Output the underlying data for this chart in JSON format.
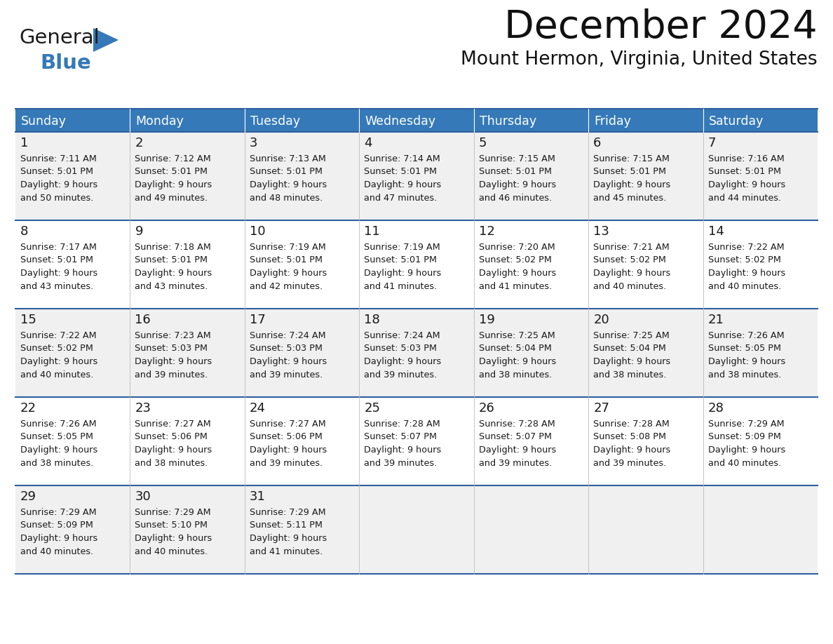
{
  "title": "December 2024",
  "subtitle": "Mount Hermon, Virginia, United States",
  "header_color": "#3579b8",
  "header_text_color": "#ffffff",
  "row_bg_odd": "#f0f0f0",
  "row_bg_even": "#ffffff",
  "border_color": "#2f5f9e",
  "text_color": "#1a1a1a",
  "days_of_week": [
    "Sunday",
    "Monday",
    "Tuesday",
    "Wednesday",
    "Thursday",
    "Friday",
    "Saturday"
  ],
  "calendar_data": [
    [
      {
        "day": "1",
        "sunrise": "7:11 AM",
        "sunset": "5:01 PM",
        "daylight_hours": "9",
        "daylight_minutes": "50"
      },
      {
        "day": "2",
        "sunrise": "7:12 AM",
        "sunset": "5:01 PM",
        "daylight_hours": "9",
        "daylight_minutes": "49"
      },
      {
        "day": "3",
        "sunrise": "7:13 AM",
        "sunset": "5:01 PM",
        "daylight_hours": "9",
        "daylight_minutes": "48"
      },
      {
        "day": "4",
        "sunrise": "7:14 AM",
        "sunset": "5:01 PM",
        "daylight_hours": "9",
        "daylight_minutes": "47"
      },
      {
        "day": "5",
        "sunrise": "7:15 AM",
        "sunset": "5:01 PM",
        "daylight_hours": "9",
        "daylight_minutes": "46"
      },
      {
        "day": "6",
        "sunrise": "7:15 AM",
        "sunset": "5:01 PM",
        "daylight_hours": "9",
        "daylight_minutes": "45"
      },
      {
        "day": "7",
        "sunrise": "7:16 AM",
        "sunset": "5:01 PM",
        "daylight_hours": "9",
        "daylight_minutes": "44"
      }
    ],
    [
      {
        "day": "8",
        "sunrise": "7:17 AM",
        "sunset": "5:01 PM",
        "daylight_hours": "9",
        "daylight_minutes": "43"
      },
      {
        "day": "9",
        "sunrise": "7:18 AM",
        "sunset": "5:01 PM",
        "daylight_hours": "9",
        "daylight_minutes": "43"
      },
      {
        "day": "10",
        "sunrise": "7:19 AM",
        "sunset": "5:01 PM",
        "daylight_hours": "9",
        "daylight_minutes": "42"
      },
      {
        "day": "11",
        "sunrise": "7:19 AM",
        "sunset": "5:01 PM",
        "daylight_hours": "9",
        "daylight_minutes": "41"
      },
      {
        "day": "12",
        "sunrise": "7:20 AM",
        "sunset": "5:02 PM",
        "daylight_hours": "9",
        "daylight_minutes": "41"
      },
      {
        "day": "13",
        "sunrise": "7:21 AM",
        "sunset": "5:02 PM",
        "daylight_hours": "9",
        "daylight_minutes": "40"
      },
      {
        "day": "14",
        "sunrise": "7:22 AM",
        "sunset": "5:02 PM",
        "daylight_hours": "9",
        "daylight_minutes": "40"
      }
    ],
    [
      {
        "day": "15",
        "sunrise": "7:22 AM",
        "sunset": "5:02 PM",
        "daylight_hours": "9",
        "daylight_minutes": "40"
      },
      {
        "day": "16",
        "sunrise": "7:23 AM",
        "sunset": "5:03 PM",
        "daylight_hours": "9",
        "daylight_minutes": "39"
      },
      {
        "day": "17",
        "sunrise": "7:24 AM",
        "sunset": "5:03 PM",
        "daylight_hours": "9",
        "daylight_minutes": "39"
      },
      {
        "day": "18",
        "sunrise": "7:24 AM",
        "sunset": "5:03 PM",
        "daylight_hours": "9",
        "daylight_minutes": "39"
      },
      {
        "day": "19",
        "sunrise": "7:25 AM",
        "sunset": "5:04 PM",
        "daylight_hours": "9",
        "daylight_minutes": "38"
      },
      {
        "day": "20",
        "sunrise": "7:25 AM",
        "sunset": "5:04 PM",
        "daylight_hours": "9",
        "daylight_minutes": "38"
      },
      {
        "day": "21",
        "sunrise": "7:26 AM",
        "sunset": "5:05 PM",
        "daylight_hours": "9",
        "daylight_minutes": "38"
      }
    ],
    [
      {
        "day": "22",
        "sunrise": "7:26 AM",
        "sunset": "5:05 PM",
        "daylight_hours": "9",
        "daylight_minutes": "38"
      },
      {
        "day": "23",
        "sunrise": "7:27 AM",
        "sunset": "5:06 PM",
        "daylight_hours": "9",
        "daylight_minutes": "38"
      },
      {
        "day": "24",
        "sunrise": "7:27 AM",
        "sunset": "5:06 PM",
        "daylight_hours": "9",
        "daylight_minutes": "39"
      },
      {
        "day": "25",
        "sunrise": "7:28 AM",
        "sunset": "5:07 PM",
        "daylight_hours": "9",
        "daylight_minutes": "39"
      },
      {
        "day": "26",
        "sunrise": "7:28 AM",
        "sunset": "5:07 PM",
        "daylight_hours": "9",
        "daylight_minutes": "39"
      },
      {
        "day": "27",
        "sunrise": "7:28 AM",
        "sunset": "5:08 PM",
        "daylight_hours": "9",
        "daylight_minutes": "39"
      },
      {
        "day": "28",
        "sunrise": "7:29 AM",
        "sunset": "5:09 PM",
        "daylight_hours": "9",
        "daylight_minutes": "40"
      }
    ],
    [
      {
        "day": "29",
        "sunrise": "7:29 AM",
        "sunset": "5:09 PM",
        "daylight_hours": "9",
        "daylight_minutes": "40"
      },
      {
        "day": "30",
        "sunrise": "7:29 AM",
        "sunset": "5:10 PM",
        "daylight_hours": "9",
        "daylight_minutes": "40"
      },
      {
        "day": "31",
        "sunrise": "7:29 AM",
        "sunset": "5:11 PM",
        "daylight_hours": "9",
        "daylight_minutes": "41"
      },
      null,
      null,
      null,
      null
    ]
  ],
  "logo_general_color": "#1a1a1a",
  "logo_blue_color": "#3579b8",
  "logo_triangle_color": "#3579b8",
  "fig_width": 11.88,
  "fig_height": 9.18,
  "dpi": 100
}
